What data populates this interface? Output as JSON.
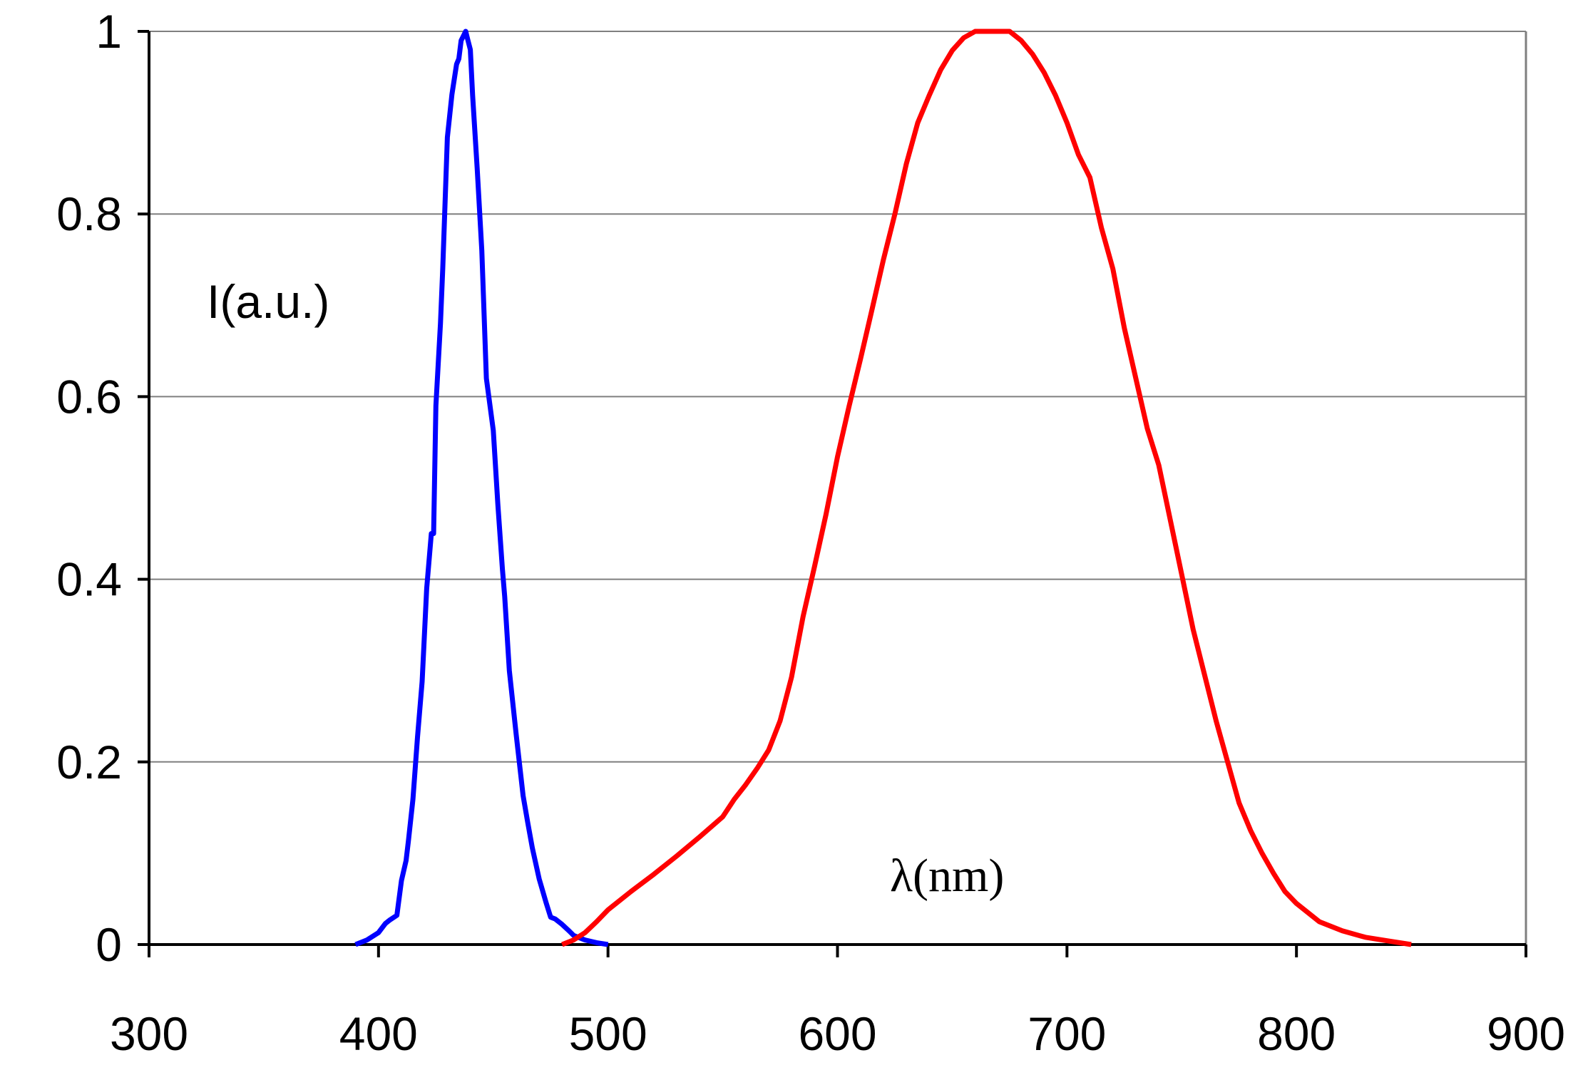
{
  "chart_data": {
    "type": "line",
    "title": "",
    "xlabel": "",
    "ylabel": "",
    "xlim": [
      300,
      900
    ],
    "ylim": [
      0,
      1
    ],
    "x_ticks": [
      300,
      400,
      500,
      600,
      700,
      800,
      900
    ],
    "y_ticks": [
      0,
      0.2,
      0.4,
      0.6,
      0.8,
      1
    ],
    "x_tick_labels": [
      "300",
      "400",
      "500",
      "600",
      "700",
      "800",
      "900"
    ],
    "y_tick_labels": [
      "0",
      "0.2",
      "0.4",
      "0.6",
      "0.8",
      "1"
    ],
    "grid": "horizontal",
    "legend": "none",
    "annotations": {
      "intensity_label": "I(a.u.)",
      "wavelength_label": "λ(nm)"
    },
    "series": [
      {
        "color": "#0000ff",
        "x": [
          390,
          395,
          400,
          403,
          405,
          408,
          410,
          412,
          413,
          415,
          417,
          419,
          421,
          423,
          424,
          425,
          427,
          428,
          430,
          432,
          434,
          435,
          436,
          437,
          438,
          439,
          440,
          441,
          442,
          443,
          445,
          447,
          450,
          452,
          454,
          455,
          457,
          460,
          463,
          465,
          467,
          470,
          473,
          475,
          477,
          480,
          483,
          485,
          490,
          495,
          500
        ],
        "y": [
          0.0,
          0.005,
          0.013,
          0.023,
          0.027,
          0.032,
          0.07,
          0.092,
          0.113,
          0.159,
          0.227,
          0.288,
          0.39,
          0.45,
          0.45,
          0.59,
          0.68,
          0.74,
          0.884,
          0.931,
          0.964,
          0.97,
          0.99,
          0.995,
          1.0,
          0.99,
          0.98,
          0.93,
          0.89,
          0.85,
          0.76,
          0.62,
          0.563,
          0.482,
          0.411,
          0.381,
          0.3,
          0.23,
          0.163,
          0.134,
          0.106,
          0.072,
          0.046,
          0.03,
          0.028,
          0.022,
          0.015,
          0.01,
          0.005,
          0.002,
          0.0
        ]
      },
      {
        "color": "#ff0000",
        "x": [
          480,
          485,
          490,
          495,
          500,
          510,
          520,
          530,
          540,
          550,
          555,
          560,
          565,
          570,
          575,
          580,
          585,
          590,
          595,
          600,
          605,
          610,
          615,
          620,
          625,
          630,
          635,
          640,
          645,
          650,
          655,
          660,
          665,
          670,
          675,
          680,
          685,
          690,
          695,
          700,
          705,
          710,
          715,
          720,
          725,
          730,
          735,
          740,
          745,
          750,
          755,
          760,
          765,
          770,
          775,
          780,
          785,
          790,
          795,
          800,
          810,
          820,
          830,
          840,
          850
        ],
        "y": [
          0.0,
          0.005,
          0.013,
          0.025,
          0.038,
          0.058,
          0.077,
          0.097,
          0.118,
          0.14,
          0.159,
          0.175,
          0.193,
          0.213,
          0.245,
          0.293,
          0.359,
          0.414,
          0.471,
          0.534,
          0.589,
          0.641,
          0.695,
          0.75,
          0.8,
          0.855,
          0.9,
          0.93,
          0.958,
          0.979,
          0.993,
          1.0,
          1.0,
          1.0,
          1.0,
          0.99,
          0.975,
          0.955,
          0.93,
          0.9,
          0.865,
          0.84,
          0.785,
          0.74,
          0.675,
          0.62,
          0.565,
          0.525,
          0.465,
          0.405,
          0.345,
          0.295,
          0.245,
          0.2,
          0.155,
          0.125,
          0.1,
          0.078,
          0.058,
          0.045,
          0.025,
          0.015,
          0.008,
          0.004,
          0.0
        ]
      }
    ]
  }
}
